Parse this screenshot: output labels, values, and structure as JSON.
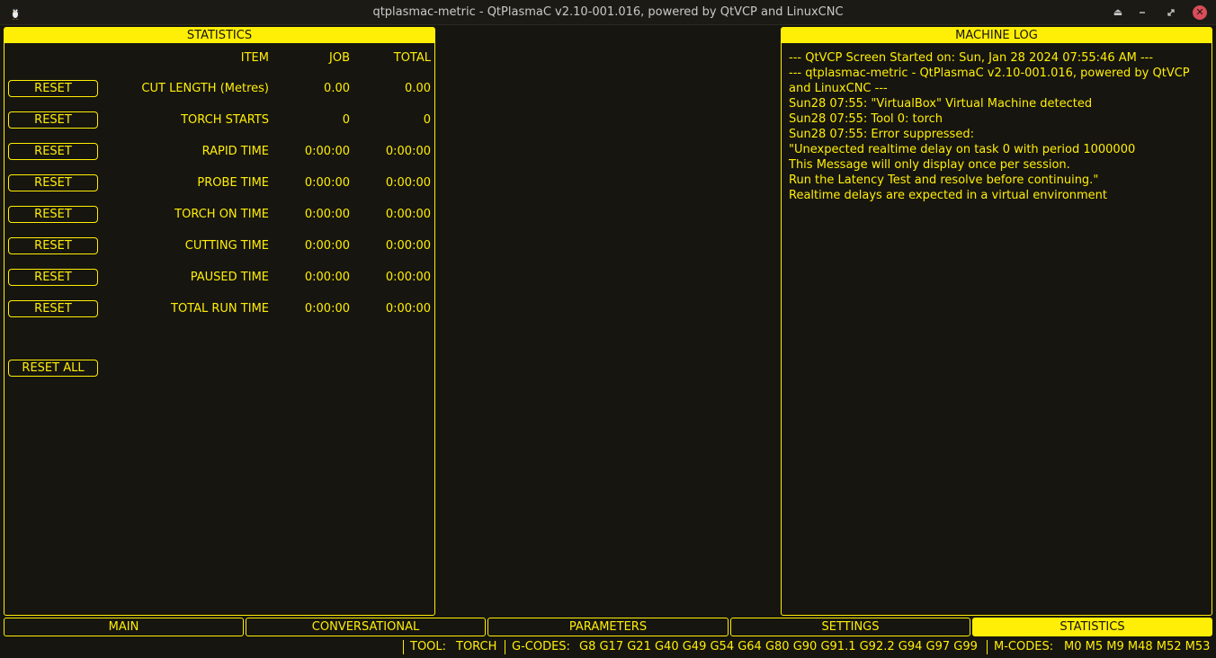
{
  "window": {
    "title": "qtplasmac-metric - QtPlasmaC v2.10-001.016, powered by QtVCP and LinuxCNC"
  },
  "statistics": {
    "header": "STATISTICS",
    "columns": {
      "item": "ITEM",
      "job": "JOB",
      "total": "TOTAL"
    },
    "reset_label": "RESET",
    "rows": [
      {
        "item": "CUT LENGTH (Metres)",
        "job": "0.00",
        "total": "0.00"
      },
      {
        "item": "TORCH STARTS",
        "job": "0",
        "total": "0"
      },
      {
        "item": "RAPID TIME",
        "job": "0:00:00",
        "total": "0:00:00"
      },
      {
        "item": "PROBE TIME",
        "job": "0:00:00",
        "total": "0:00:00"
      },
      {
        "item": "TORCH ON TIME",
        "job": "0:00:00",
        "total": "0:00:00"
      },
      {
        "item": "CUTTING TIME",
        "job": "0:00:00",
        "total": "0:00:00"
      },
      {
        "item": "PAUSED TIME",
        "job": "0:00:00",
        "total": "0:00:00"
      },
      {
        "item": "TOTAL RUN TIME",
        "job": "0:00:00",
        "total": "0:00:00"
      }
    ],
    "reset_all_label": "RESET ALL"
  },
  "machine_log": {
    "header": "MACHINE LOG",
    "lines": [
      "--- QtVCP Screen Started on: Sun, Jan 28 2024 07:55:46 AM ---",
      "--- qtplasmac-metric - QtPlasmaC v2.10-001.016, powered by QtVCP and LinuxCNC ---",
      "Sun28 07:55: \"VirtualBox\" Virtual Machine detected",
      "Sun28 07:55: Tool 0: torch",
      "Sun28 07:55: Error suppressed:",
      "\"Unexpected realtime delay on task 0 with period 1000000",
      "This Message will only display once per session.",
      "Run the Latency Test and resolve before continuing.\"",
      "Realtime delays are expected in a virtual environment"
    ]
  },
  "tabs": [
    {
      "label": "MAIN",
      "active": false
    },
    {
      "label": "CONVERSATIONAL",
      "active": false
    },
    {
      "label": "PARAMETERS",
      "active": false
    },
    {
      "label": "SETTINGS",
      "active": false
    },
    {
      "label": "STATISTICS",
      "active": true
    }
  ],
  "status": {
    "tool_label": "TOOL:",
    "tool_value": "TORCH",
    "gcodes_label": "G-CODES:",
    "gcodes_value": "G8 G17 G21 G40 G49 G54 G64 G80 G90 G91.1 G92.2 G94 G97 G99",
    "mcodes_label": "M-CODES:",
    "mcodes_value": "M0 M5 M9 M48 M52 M53"
  },
  "colors": {
    "accent": "#ffee06",
    "background": "#16150f",
    "close": "#d94c5a"
  },
  "icons": [
    "app-icon",
    "keep-above-icon",
    "minimize-icon",
    "maximize-icon",
    "close-icon"
  ]
}
